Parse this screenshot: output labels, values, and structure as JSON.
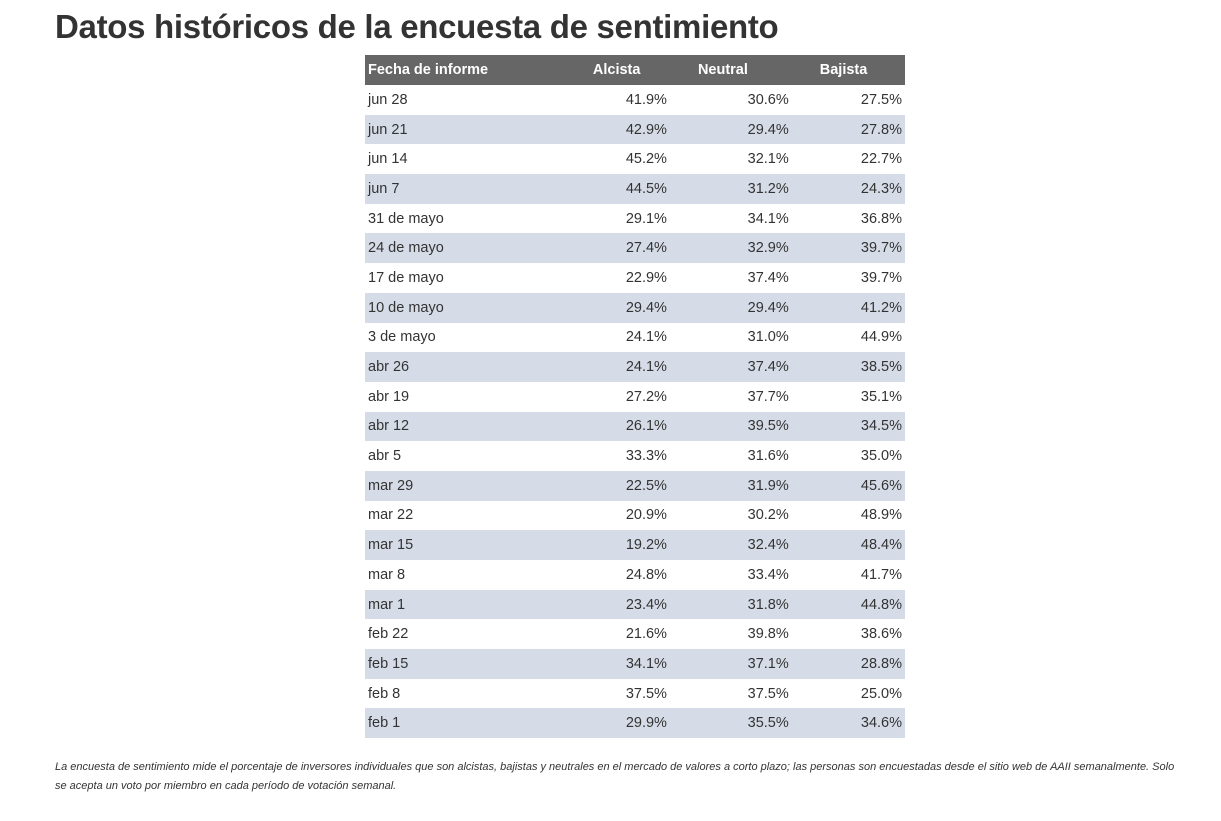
{
  "title": "Datos históricos de la encuesta de sentimiento",
  "table": {
    "headers": [
      "Fecha de informe",
      "Alcista",
      "Neutral",
      "Bajista"
    ],
    "rows": [
      [
        "jun 28",
        "41.9%",
        "30.6%",
        "27.5%"
      ],
      [
        "jun 21",
        "42.9%",
        "29.4%",
        "27.8%"
      ],
      [
        "jun 14",
        "45.2%",
        "32.1%",
        "22.7%"
      ],
      [
        "jun 7",
        "44.5%",
        "31.2%",
        "24.3%"
      ],
      [
        "31 de mayo",
        "29.1%",
        "34.1%",
        "36.8%"
      ],
      [
        "24 de mayo",
        "27.4%",
        "32.9%",
        "39.7%"
      ],
      [
        "17 de mayo",
        "22.9%",
        "37.4%",
        "39.7%"
      ],
      [
        "10 de mayo",
        "29.4%",
        "29.4%",
        "41.2%"
      ],
      [
        "3 de mayo",
        "24.1%",
        "31.0%",
        "44.9%"
      ],
      [
        "abr 26",
        "24.1%",
        "37.4%",
        "38.5%"
      ],
      [
        "abr 19",
        "27.2%",
        "37.7%",
        "35.1%"
      ],
      [
        "abr 12",
        "26.1%",
        "39.5%",
        "34.5%"
      ],
      [
        "abr 5",
        "33.3%",
        "31.6%",
        "35.0%"
      ],
      [
        "mar 29",
        "22.5%",
        "31.9%",
        "45.6%"
      ],
      [
        "mar 22",
        "20.9%",
        "30.2%",
        "48.9%"
      ],
      [
        "mar 15",
        "19.2%",
        "32.4%",
        "48.4%"
      ],
      [
        "mar 8",
        "24.8%",
        "33.4%",
        "41.7%"
      ],
      [
        "mar 1",
        "23.4%",
        "31.8%",
        "44.8%"
      ],
      [
        "feb 22",
        "21.6%",
        "39.8%",
        "38.6%"
      ],
      [
        "feb 15",
        "34.1%",
        "37.1%",
        "28.8%"
      ],
      [
        "feb 8",
        "37.5%",
        "37.5%",
        "25.0%"
      ],
      [
        "feb 1",
        "29.9%",
        "35.5%",
        "34.6%"
      ]
    ]
  },
  "footnote": "La encuesta de sentimiento mide el porcentaje de inversores individuales que son alcistas, bajistas y neutrales en el mercado de valores a corto plazo; las personas son encuestadas desde el sitio web de AAII semanalmente. Solo se acepta un voto por miembro en cada período de votación semanal."
}
